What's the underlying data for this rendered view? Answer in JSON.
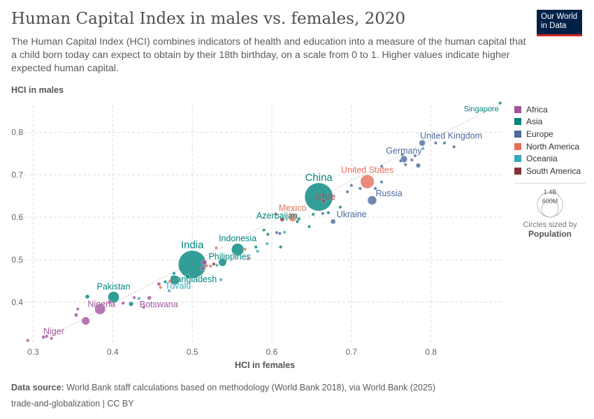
{
  "title": "Human Capital Index in males vs. females, 2020",
  "subtitle": "The Human Capital Index (HCI) combines indicators of health and education into a measure of the human capital that a child born today can expect to obtain by their 18th birthday, on a scale from 0 to 1. Higher values indicate higher expected human capital.",
  "logo": {
    "line1": "Our World",
    "line2": "in Data",
    "bg": "#002147",
    "accent": "#ce261e"
  },
  "legend": [
    {
      "label": "Africa",
      "color": "#a2559c"
    },
    {
      "label": "Asia",
      "color": "#00847e"
    },
    {
      "label": "Europe",
      "color": "#4c6a9c"
    },
    {
      "label": "North America",
      "color": "#e56e5a"
    },
    {
      "label": "Oceania",
      "color": "#38aaba"
    },
    {
      "label": "South America",
      "color": "#883039"
    }
  ],
  "size_legend": {
    "large": "1.4B",
    "small": "600M",
    "caption": "Circles sized by",
    "variable": "Population"
  },
  "footer": {
    "source_label": "Data source:",
    "source": " World Bank staff calculations based on methodology (World Bank 2018), via World Bank (2025)",
    "license": "trade-and-globalization | CC BY"
  },
  "chart_data": {
    "type": "scatter",
    "xlabel": "HCI in females",
    "ylabel": "HCI in males",
    "xlim": [
      0.289,
      0.889
    ],
    "ylim": [
      0.301,
      0.865
    ],
    "xticks": [
      "0.3",
      "0.4",
      "0.5",
      "0.6",
      "0.7",
      "0.8"
    ],
    "yticks": [
      "0.4",
      "0.5",
      "0.6",
      "0.7",
      "0.8"
    ],
    "grid": true,
    "reference_line": "y = x",
    "legend_position": "right",
    "points": [
      {
        "label": "Singapore",
        "x": 0.887,
        "y": 0.869,
        "region": "Asia",
        "pop": 6
      },
      {
        "label": "United Kingdom",
        "x": 0.789,
        "y": 0.775,
        "region": "Europe",
        "pop": 67
      },
      {
        "label": "Germany",
        "x": 0.766,
        "y": 0.737,
        "region": "Europe",
        "pop": 83
      },
      {
        "label": "United States",
        "x": 0.72,
        "y": 0.684,
        "region": "North America",
        "pop": 335
      },
      {
        "label": "Russia",
        "x": 0.726,
        "y": 0.64,
        "region": "Europe",
        "pop": 145
      },
      {
        "label": "China",
        "x": 0.659,
        "y": 0.648,
        "region": "Asia",
        "pop": 1420
      },
      {
        "label": "Chile",
        "x": 0.665,
        "y": 0.638,
        "region": "South America",
        "pop": 19
      },
      {
        "label": "Mexico",
        "x": 0.626,
        "y": 0.6,
        "region": "North America",
        "pop": 126
      },
      {
        "label": "Ukraine",
        "x": 0.677,
        "y": 0.59,
        "region": "Europe",
        "pop": 44
      },
      {
        "label": "Azerbaijan",
        "x": 0.632,
        "y": 0.59,
        "region": "Asia",
        "pop": 10
      },
      {
        "label": "Indonesia",
        "x": 0.557,
        "y": 0.524,
        "region": "Asia",
        "pop": 272
      },
      {
        "label": "Philippines",
        "x": 0.538,
        "y": 0.494,
        "region": "Asia",
        "pop": 112
      },
      {
        "label": "India",
        "x": 0.5,
        "y": 0.489,
        "region": "Asia",
        "pop": 1396
      },
      {
        "label": "Bangladesh",
        "x": 0.478,
        "y": 0.452,
        "region": "Asia",
        "pop": 167
      },
      {
        "label": "Tuvalu",
        "x": 0.471,
        "y": 0.427,
        "region": "Oceania",
        "pop": 1
      },
      {
        "label": "Pakistan",
        "x": 0.401,
        "y": 0.412,
        "region": "Asia",
        "pop": 227
      },
      {
        "label": "Botswana",
        "x": 0.439,
        "y": 0.388,
        "region": "Africa",
        "pop": 2
      },
      {
        "label": "Nigeria",
        "x": 0.384,
        "y": 0.384,
        "region": "Africa",
        "pop": 208
      },
      {
        "label": "Niger",
        "x": 0.313,
        "y": 0.318,
        "region": "Africa",
        "pop": 24
      },
      {
        "label": "",
        "x": 0.366,
        "y": 0.356,
        "region": "Africa",
        "pop": 115
      },
      {
        "label": "",
        "x": 0.293,
        "y": 0.31,
        "region": "Africa",
        "pop": 17
      },
      {
        "label": "",
        "x": 0.317,
        "y": 0.32,
        "region": "Africa",
        "pop": 16
      },
      {
        "label": "",
        "x": 0.323,
        "y": 0.315,
        "region": "Africa",
        "pop": 12
      },
      {
        "label": "",
        "x": 0.354,
        "y": 0.37,
        "region": "Africa",
        "pop": 28
      },
      {
        "label": "",
        "x": 0.356,
        "y": 0.384,
        "region": "Africa",
        "pop": 14
      },
      {
        "label": "",
        "x": 0.368,
        "y": 0.413,
        "region": "Asia",
        "pop": 32
      },
      {
        "label": "",
        "x": 0.396,
        "y": 0.4,
        "region": "Africa",
        "pop": 30
      },
      {
        "label": "",
        "x": 0.413,
        "y": 0.398,
        "region": "Africa",
        "pop": 20
      },
      {
        "label": "",
        "x": 0.423,
        "y": 0.396,
        "region": "Asia",
        "pop": 38
      },
      {
        "label": "",
        "x": 0.427,
        "y": 0.411,
        "region": "Africa",
        "pop": 12
      },
      {
        "label": "",
        "x": 0.433,
        "y": 0.409,
        "region": "Oceania",
        "pop": 9
      },
      {
        "label": "",
        "x": 0.446,
        "y": 0.41,
        "region": "Africa",
        "pop": 30
      },
      {
        "label": "",
        "x": 0.458,
        "y": 0.443,
        "region": "Africa",
        "pop": 26
      },
      {
        "label": "",
        "x": 0.46,
        "y": 0.435,
        "region": "North America",
        "pop": 11
      },
      {
        "label": "",
        "x": 0.466,
        "y": 0.448,
        "region": "Asia",
        "pop": 5
      },
      {
        "label": "",
        "x": 0.472,
        "y": 0.45,
        "region": "North America",
        "pop": 5
      },
      {
        "label": "",
        "x": 0.477,
        "y": 0.468,
        "region": "Asia",
        "pop": 5
      },
      {
        "label": "",
        "x": 0.494,
        "y": 0.46,
        "region": "Asia",
        "pop": 30
      },
      {
        "label": "",
        "x": 0.515,
        "y": 0.494,
        "region": "Africa",
        "pop": 50
      },
      {
        "label": "",
        "x": 0.513,
        "y": 0.48,
        "region": "Africa",
        "pop": 30
      },
      {
        "label": "",
        "x": 0.518,
        "y": 0.486,
        "region": "North America",
        "pop": 10
      },
      {
        "label": "",
        "x": 0.523,
        "y": 0.485,
        "region": "North America",
        "pop": 10
      },
      {
        "label": "",
        "x": 0.527,
        "y": 0.49,
        "region": "South America",
        "pop": 7
      },
      {
        "label": "",
        "x": 0.531,
        "y": 0.487,
        "region": "Oceania",
        "pop": 9
      },
      {
        "label": "",
        "x": 0.53,
        "y": 0.528,
        "region": "North America",
        "pop": 3
      },
      {
        "label": "",
        "x": 0.536,
        "y": 0.453,
        "region": "Oceania",
        "pop": 3
      },
      {
        "label": "",
        "x": 0.566,
        "y": 0.525,
        "region": "North America",
        "pop": 6
      },
      {
        "label": "",
        "x": 0.57,
        "y": 0.502,
        "region": "North America",
        "pop": 3
      },
      {
        "label": "",
        "x": 0.58,
        "y": 0.53,
        "region": "Asia",
        "pop": 6
      },
      {
        "label": "",
        "x": 0.582,
        "y": 0.52,
        "region": "Oceania",
        "pop": 3
      },
      {
        "label": "",
        "x": 0.59,
        "y": 0.57,
        "region": "Asia",
        "pop": 10
      },
      {
        "label": "",
        "x": 0.595,
        "y": 0.56,
        "region": "Asia",
        "pop": 19
      },
      {
        "label": "",
        "x": 0.594,
        "y": 0.538,
        "region": "Oceania",
        "pop": 3
      },
      {
        "label": "",
        "x": 0.605,
        "y": 0.607,
        "region": "South America",
        "pop": 18
      },
      {
        "label": "",
        "x": 0.606,
        "y": 0.564,
        "region": "Europe",
        "pop": 7
      },
      {
        "label": "",
        "x": 0.611,
        "y": 0.53,
        "region": "Asia",
        "pop": 6
      },
      {
        "label": "",
        "x": 0.61,
        "y": 0.562,
        "region": "Europe",
        "pop": 4
      },
      {
        "label": "",
        "x": 0.613,
        "y": 0.595,
        "region": "South America",
        "pop": 33
      },
      {
        "label": "",
        "x": 0.616,
        "y": 0.565,
        "region": "Oceania",
        "pop": 3
      },
      {
        "label": "",
        "x": 0.634,
        "y": 0.596,
        "region": "Asia",
        "pop": 15
      },
      {
        "label": "",
        "x": 0.647,
        "y": 0.578,
        "region": "Asia",
        "pop": 7
      },
      {
        "label": "",
        "x": 0.652,
        "y": 0.607,
        "region": "Asia",
        "pop": 5
      },
      {
        "label": "",
        "x": 0.664,
        "y": 0.609,
        "region": "Europe",
        "pop": 5
      },
      {
        "label": "",
        "x": 0.671,
        "y": 0.611,
        "region": "Asia",
        "pop": 5
      },
      {
        "label": "",
        "x": 0.686,
        "y": 0.624,
        "region": "Asia",
        "pop": 5
      },
      {
        "label": "",
        "x": 0.695,
        "y": 0.66,
        "region": "Europe",
        "pop": 5
      },
      {
        "label": "",
        "x": 0.7,
        "y": 0.675,
        "region": "Europe",
        "pop": 4
      },
      {
        "label": "",
        "x": 0.711,
        "y": 0.668,
        "region": "Europe",
        "pop": 5
      },
      {
        "label": "",
        "x": 0.73,
        "y": 0.668,
        "region": "Europe",
        "pop": 4
      },
      {
        "label": "",
        "x": 0.738,
        "y": 0.683,
        "region": "Europe",
        "pop": 10
      },
      {
        "label": "",
        "x": 0.738,
        "y": 0.72,
        "region": "Europe",
        "pop": 10
      },
      {
        "label": "",
        "x": 0.762,
        "y": 0.733,
        "region": "Europe",
        "pop": 8
      },
      {
        "label": "",
        "x": 0.764,
        "y": 0.748,
        "region": "Europe",
        "pop": 10
      },
      {
        "label": "",
        "x": 0.768,
        "y": 0.724,
        "region": "Europe",
        "pop": 9
      },
      {
        "label": "",
        "x": 0.776,
        "y": 0.735,
        "region": "Europe",
        "pop": 5
      },
      {
        "label": "",
        "x": 0.78,
        "y": 0.745,
        "region": "Europe",
        "pop": 11
      },
      {
        "label": "",
        "x": 0.784,
        "y": 0.722,
        "region": "Europe",
        "pop": 38
      },
      {
        "label": "",
        "x": 0.79,
        "y": 0.762,
        "region": "Oceania",
        "pop": 5
      },
      {
        "label": "",
        "x": 0.806,
        "y": 0.775,
        "region": "Europe",
        "pop": 5
      },
      {
        "label": "",
        "x": 0.817,
        "y": 0.775,
        "region": "Asia",
        "pop": 3
      },
      {
        "label": "",
        "x": 0.829,
        "y": 0.766,
        "region": "Europe",
        "pop": 5
      }
    ]
  }
}
